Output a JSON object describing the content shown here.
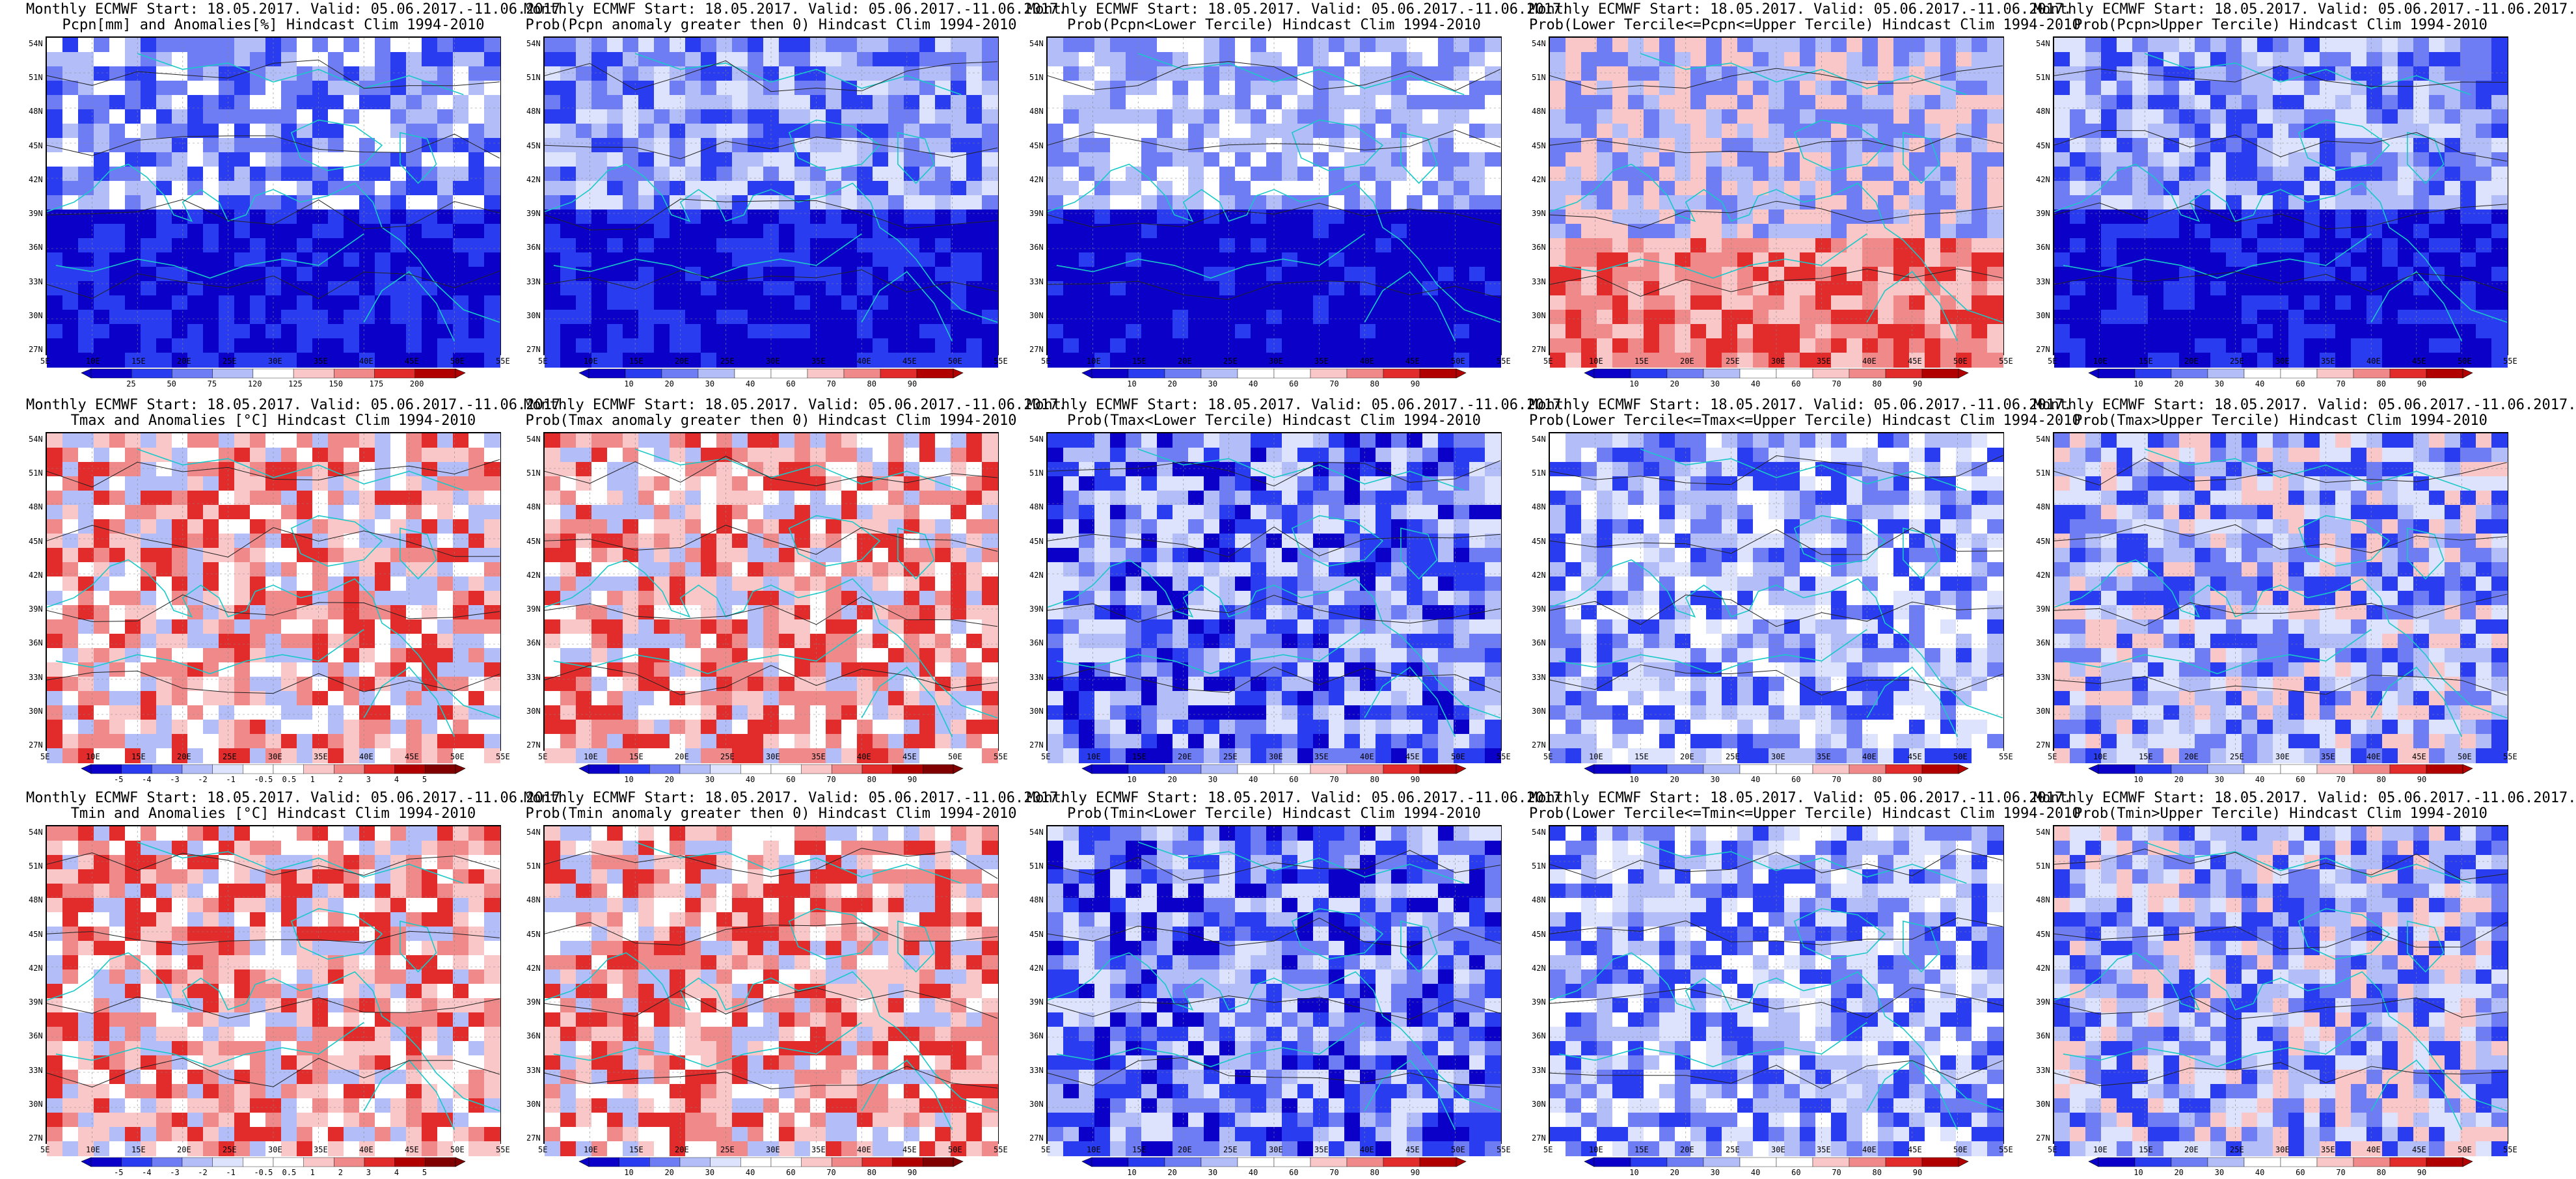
{
  "colors": {
    "deep_blue": "#0a00c8",
    "blue": "#2a3cf0",
    "mid_blue": "#6f7df5",
    "light_blue": "#b3bdf8",
    "very_light_blue": "#dde3fc",
    "light_red": "#f9c7c7",
    "mid_red": "#f08a8a",
    "red": "#e22c2c",
    "deep_red": "#b00000",
    "coast": "#19c8c8",
    "contour": "#222222"
  },
  "lat_labels": [
    "54N",
    "51N",
    "48N",
    "45N",
    "42N",
    "39N",
    "36N",
    "33N",
    "30N",
    "27N"
  ],
  "lon_labels": [
    "5E",
    "10E",
    "15E",
    "20E",
    "25E",
    "30E",
    "35E",
    "40E",
    "45E",
    "50E",
    "55E"
  ],
  "panels": [
    {
      "title1": "Monthly ECMWF Start: 18.05.2017. Valid: 05.06.2017.-11.06.2017.",
      "title2": "Pcpn[mm] and Anomalies[%]  Hindcast Clim 1994-2010",
      "scheme": "anom_pcpn",
      "cbar": [
        "25",
        "50",
        "75",
        "120",
        "125",
        "150",
        "175",
        "200"
      ]
    },
    {
      "title1": "Monthly ECMWF Start: 18.05.2017. Valid: 05.06.2017.-11.06.2017.",
      "title2": "Prob(Pcpn anomaly greater then 0)  Hindcast Clim 1994-2010",
      "scheme": "prob_blue",
      "cbar": [
        "10",
        "20",
        "30",
        "40",
        "60",
        "70",
        "80",
        "90"
      ]
    },
    {
      "title1": "Monthly ECMWF Start: 18.05.2017. Valid: 05.06.2017.-11.06.2017.",
      "title2": "Prob(Pcpn<Lower Tercile)  Hindcast Clim 1994-2010",
      "scheme": "prob_deep",
      "cbar": [
        "10",
        "20",
        "30",
        "40",
        "60",
        "70",
        "80",
        "90"
      ]
    },
    {
      "title1": "Monthly ECMWF Start: 18.05.2017. Valid: 05.06.2017.-11.06.2017.",
      "title2": "Prob(Lower Tercile<=Pcpn<=Upper Tercile)  Hindcast Clim 1994-2010",
      "scheme": "prob_redsouth",
      "cbar": [
        "10",
        "20",
        "30",
        "40",
        "60",
        "70",
        "80",
        "90"
      ]
    },
    {
      "title1": "Monthly ECMWF Start: 18.05.2017. Valid: 05.06.2017.-11.06.2017.",
      "title2": "Prob(Pcpn>Upper Tercile)  Hindcast Clim 1994-2010",
      "scheme": "prob_blue",
      "cbar": [
        "10",
        "20",
        "30",
        "40",
        "60",
        "70",
        "80",
        "90"
      ]
    },
    {
      "title1": "Monthly ECMWF Start: 18.05.2017. Valid: 05.06.2017.-11.06.2017.",
      "title2": "Tmax and Anomalies [°C]  Hindcast Clim 1994-2010",
      "scheme": "anom_temp",
      "cbar": [
        "-5",
        "-4",
        "-3",
        "-2",
        "-1",
        "-0.5",
        "0.5",
        "1",
        "2",
        "3",
        "4",
        "5"
      ]
    },
    {
      "title1": "Monthly ECMWF Start: 18.05.2017. Valid: 05.06.2017.-11.06.2017.",
      "title2": "Prob(Tmax anomaly greater then 0)  Hindcast Clim 1994-2010",
      "scheme": "anom_temp",
      "cbar": [
        "10",
        "20",
        "30",
        "40",
        "60",
        "70",
        "80",
        "90"
      ]
    },
    {
      "title1": "Monthly ECMWF Start: 18.05.2017. Valid: 05.06.2017.-11.06.2017.",
      "title2": "Prob(Tmax<Lower Tercile)  Hindcast Clim 1994-2010",
      "scheme": "prob_blue",
      "cbar": [
        "10",
        "20",
        "30",
        "40",
        "60",
        "70",
        "80",
        "90"
      ]
    },
    {
      "title1": "Monthly ECMWF Start: 18.05.2017. Valid: 05.06.2017.-11.06.2017.",
      "title2": "Prob(Lower Tercile<=Tmax<=Upper Tercile)  Hindcast Clim 1994-2010",
      "scheme": "prob_light",
      "cbar": [
        "10",
        "20",
        "30",
        "40",
        "60",
        "70",
        "80",
        "90"
      ]
    },
    {
      "title1": "Monthly ECMWF Start: 18.05.2017. Valid: 05.06.2017.-11.06.2017.",
      "title2": "Prob(Tmax>Upper Tercile)  Hindcast Clim 1994-2010",
      "scheme": "prob_mixed",
      "cbar": [
        "10",
        "20",
        "30",
        "40",
        "60",
        "70",
        "80",
        "90"
      ]
    },
    {
      "title1": "Monthly ECMWF Start: 18.05.2017. Valid: 05.06.2017.-11.06.2017.",
      "title2": "Tmin and Anomalies [°C]  Hindcast Clim 1994-2010",
      "scheme": "anom_temp",
      "cbar": [
        "-5",
        "-4",
        "-3",
        "-2",
        "-1",
        "-0.5",
        "0.5",
        "1",
        "2",
        "3",
        "4",
        "5"
      ]
    },
    {
      "title1": "Monthly ECMWF Start: 18.05.2017. Valid: 05.06.2017.-11.06.2017.",
      "title2": "Prob(Tmin anomaly greater then 0)  Hindcast Clim 1994-2010",
      "scheme": "anom_temp",
      "cbar": [
        "10",
        "20",
        "30",
        "40",
        "60",
        "70",
        "80",
        "90"
      ]
    },
    {
      "title1": "Monthly ECMWF Start: 18.05.2017. Valid: 05.06.2017.-11.06.2017.",
      "title2": "Prob(Tmin<Lower Tercile)  Hindcast Clim 1994-2010",
      "scheme": "prob_blue",
      "cbar": [
        "10",
        "20",
        "30",
        "40",
        "60",
        "70",
        "80",
        "90"
      ]
    },
    {
      "title1": "Monthly ECMWF Start: 18.05.2017. Valid: 05.06.2017.-11.06.2017.",
      "title2": "Prob(Lower Tercile<=Tmin<=Upper Tercile)  Hindcast Clim 1994-2010",
      "scheme": "prob_light",
      "cbar": [
        "10",
        "20",
        "30",
        "40",
        "60",
        "70",
        "80",
        "90"
      ]
    },
    {
      "title1": "Monthly ECMWF Start: 18.05.2017. Valid: 05.06.2017.-11.06.2017.",
      "title2": "Prob(Tmin>Upper Tercile)  Hindcast Clim 1994-2010",
      "scheme": "prob_mixed",
      "cbar": [
        "10",
        "20",
        "30",
        "40",
        "60",
        "70",
        "80",
        "90"
      ]
    }
  ]
}
